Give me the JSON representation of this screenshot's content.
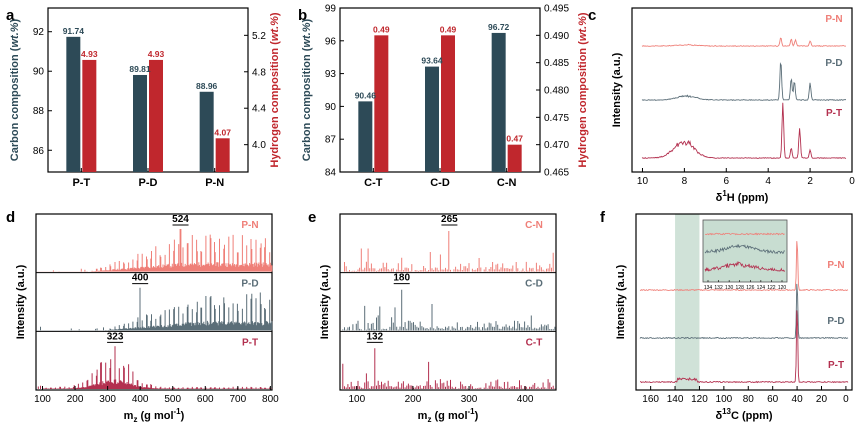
{
  "colors": {
    "dark": "#2d4a57",
    "red": "#c0272d",
    "pn": "#ef7f78",
    "pd": "#5b6e78",
    "pt": "#b3304f",
    "inset": "#c8ddd1"
  },
  "chart_data": [
    {
      "panel": "a",
      "type": "bar",
      "categories": [
        "P-T",
        "P-D",
        "P-N"
      ],
      "series": [
        {
          "values": [
            91.74,
            89.81,
            88.96
          ],
          "labels": [
            "91.74",
            "89.81",
            "88.96"
          ],
          "axis": "left"
        },
        {
          "values": [
            4.93,
            4.93,
            4.07
          ],
          "labels": [
            "4.93",
            "4.93",
            "4.07"
          ],
          "axis": "right"
        }
      ],
      "ylabel": "Carbon composition (wt.%)",
      "y2label": "Hydrogen composition (wt.%)",
      "ylim": [
        84.9,
        93.2
      ],
      "y2lim": [
        3.7,
        5.5
      ],
      "yticks": [
        "86",
        "88",
        "90",
        "92"
      ],
      "y2ticks": [
        "4.0",
        "4.4",
        "4.8",
        "5.2"
      ]
    },
    {
      "panel": "b",
      "type": "bar",
      "categories": [
        "C-T",
        "C-D",
        "C-N"
      ],
      "series": [
        {
          "values": [
            90.46,
            93.64,
            96.72
          ],
          "labels": [
            "90.46",
            "93.64",
            "96.72"
          ],
          "axis": "left"
        },
        {
          "values": [
            0.49,
            0.49,
            0.47
          ],
          "labels": [
            "0.49",
            "0.49",
            "0.47"
          ],
          "axis": "right"
        }
      ],
      "ylabel": "Carbon composition (wt.%)",
      "y2label": "Hydrogen composition (wt.%)",
      "ylim": [
        84,
        99
      ],
      "y2lim": [
        0.465,
        0.495
      ],
      "yticks": [
        "84",
        "87",
        "90",
        "93",
        "96",
        "99"
      ],
      "y2ticks": [
        "0.465",
        "0.470",
        "0.475",
        "0.480",
        "0.485",
        "0.490",
        "0.495"
      ]
    },
    {
      "panel": "c",
      "type": "line",
      "xlabel_sym": "δ",
      "xlabel_sup": "1",
      "xlabel_rest": "H (ppm)",
      "ylabel": "Intensity (a.u.)",
      "xlim": [
        10.5,
        0
      ],
      "xticks": [
        "10",
        "8",
        "6",
        "4",
        "2",
        "0"
      ],
      "series": [
        {
          "name": "P-N",
          "peaks": [
            [
              7.9,
              1.5
            ],
            [
              3.4,
              9
            ],
            [
              2.9,
              7
            ],
            [
              2.7,
              6
            ],
            [
              2.0,
              5
            ]
          ]
        },
        {
          "name": "P-D",
          "peaks": [
            [
              7.9,
              5
            ],
            [
              3.4,
              40
            ],
            [
              2.9,
              22
            ],
            [
              2.75,
              19
            ],
            [
              2.0,
              17
            ]
          ]
        },
        {
          "name": "P-T",
          "peaks": [
            [
              7.9,
              12
            ],
            [
              8.2,
              9
            ],
            [
              3.3,
              55
            ],
            [
              2.9,
              10
            ],
            [
              2.5,
              30
            ],
            [
              2.0,
              8
            ]
          ]
        }
      ]
    },
    {
      "panel": "d",
      "type": "line",
      "xlabel_main": "m",
      "xlabel_sub": "z",
      "xlabel_rest": " (g mol",
      "xlabel_sup": "-1",
      "xlabel_end": ")",
      "ylabel": "Intensity (a.u.)",
      "xlim": [
        80,
        805
      ],
      "xticks": [
        "100",
        "200",
        "300",
        "400",
        "500",
        "600",
        "700",
        "800"
      ],
      "series": [
        {
          "name": "P-N",
          "peak": "524",
          "range": [
            240,
            805
          ],
          "center": 560
        },
        {
          "name": "P-D",
          "peak": "400",
          "range": [
            290,
            805
          ],
          "center": 420
        },
        {
          "name": "P-T",
          "peak": "323",
          "range": [
            100,
            805
          ],
          "center": 320
        }
      ]
    },
    {
      "panel": "e",
      "type": "line",
      "xlabel_main": "m",
      "xlabel_sub": "z",
      "xlabel_rest": " (g mol",
      "xlabel_sup": "-1",
      "xlabel_end": ")",
      "ylabel": "Intensity (a.u.)",
      "xlim": [
        70,
        455
      ],
      "xticks": [
        "100",
        "200",
        "300",
        "400"
      ],
      "series": [
        {
          "name": "C-N",
          "peak": "265"
        },
        {
          "name": "C-D",
          "peak": "180"
        },
        {
          "name": "C-T",
          "peak": "132"
        }
      ]
    },
    {
      "panel": "f",
      "type": "line",
      "xlabel_sym": "δ",
      "xlabel_sup": "13",
      "xlabel_rest": "C (ppm)",
      "ylabel": "Intensity (a.u.)",
      "xlim": [
        172,
        -5
      ],
      "xticks": [
        "160",
        "140",
        "120",
        "100",
        "80",
        "60",
        "40",
        "20",
        "0"
      ],
      "inset_ticks": [
        "134",
        "132",
        "130",
        "128",
        "126",
        "124",
        "122",
        "120"
      ],
      "series": [
        {
          "name": "P-N",
          "peaks": [
            [
              40,
              55
            ]
          ]
        },
        {
          "name": "P-D",
          "peaks": [
            [
              40,
              60
            ]
          ]
        },
        {
          "name": "P-T",
          "peaks": [
            [
              40,
              80
            ]
          ]
        }
      ]
    }
  ]
}
